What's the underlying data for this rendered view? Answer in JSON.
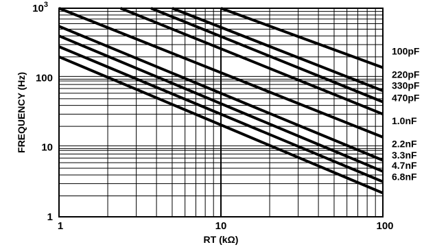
{
  "chart_data": {
    "type": "line",
    "xscale": "log",
    "yscale": "log",
    "xlim": [
      1,
      100
    ],
    "ylim": [
      1,
      1000
    ],
    "grid": true,
    "xlabel": "RT (kΩ)",
    "ylabel": "FREQUENCY (Hz)",
    "xticks": [
      {
        "value": 1,
        "label": "1"
      },
      {
        "value": 10,
        "label": "10"
      },
      {
        "value": 100,
        "label": "100"
      }
    ],
    "yticks": [
      {
        "value": 1,
        "label": "1"
      },
      {
        "value": 10,
        "label": "10"
      },
      {
        "value": 100,
        "label": "100"
      },
      {
        "value": 1000,
        "label": "10",
        "exponent": "3"
      }
    ],
    "series": [
      {
        "name": "100pF",
        "x": [
          10,
          100
        ],
        "y": [
          1000,
          140
        ]
      },
      {
        "name": "220pF",
        "x": [
          5,
          100
        ],
        "y": [
          1000,
          65
        ]
      },
      {
        "name": "330pF",
        "x": [
          3.7,
          100
        ],
        "y": [
          1000,
          45
        ]
      },
      {
        "name": "470pF",
        "x": [
          2.4,
          100
        ],
        "y": [
          1000,
          30
        ]
      },
      {
        "name": "1.0nF",
        "x": [
          1,
          100
        ],
        "y": [
          1000,
          14
        ]
      },
      {
        "name": "2.2nF",
        "x": [
          1,
          100
        ],
        "y": [
          550,
          6.5
        ]
      },
      {
        "name": "3.3nF",
        "x": [
          1,
          100
        ],
        "y": [
          400,
          4.5
        ]
      },
      {
        "name": "4.7nF",
        "x": [
          1,
          100
        ],
        "y": [
          280,
          3.2
        ]
      },
      {
        "name": "6.8nF",
        "x": [
          1,
          100
        ],
        "y": [
          200,
          2.2
        ]
      }
    ]
  }
}
